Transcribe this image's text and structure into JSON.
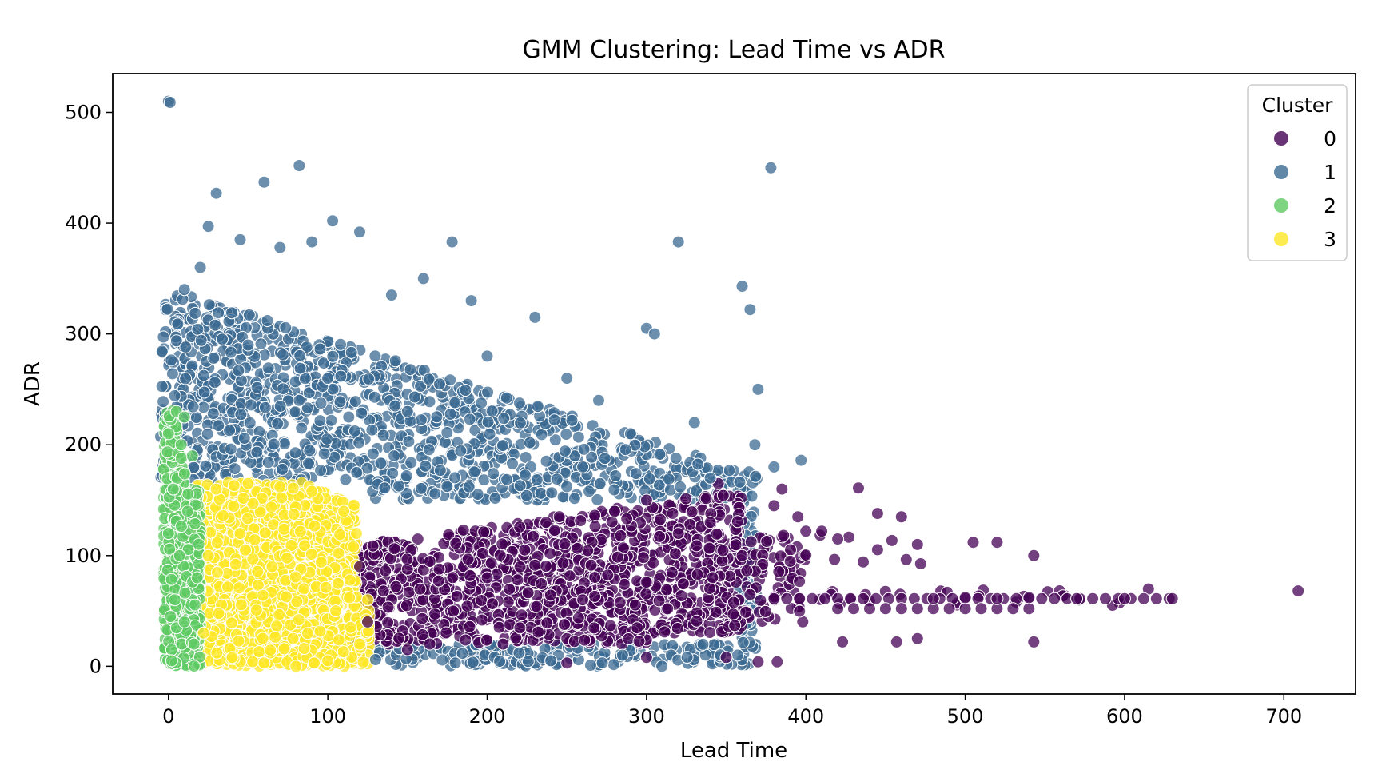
{
  "chart_data": {
    "type": "scatter",
    "title": "GMM Clustering: Lead Time vs ADR",
    "xlabel": "Lead Time",
    "ylabel": "ADR",
    "xlim": [
      -35,
      745
    ],
    "ylim": [
      -25,
      535
    ],
    "xticks": [
      0,
      100,
      200,
      300,
      400,
      500,
      600,
      700
    ],
    "yticks": [
      0,
      100,
      200,
      300,
      400,
      500
    ],
    "grid": false,
    "legend": {
      "title": "Cluster",
      "placement": "top-right",
      "entries": [
        "0",
        "1",
        "2",
        "3"
      ]
    },
    "series": [
      {
        "name": "0",
        "color": "#440154",
        "region": {
          "x": [
            117,
            630
          ],
          "y": [
            3,
            166
          ]
        },
        "points": [
          [
            709,
            68
          ],
          [
            630,
            61
          ],
          [
            600,
            61
          ],
          [
            570,
            61
          ],
          [
            540,
            62
          ],
          [
            520,
            61
          ],
          [
            500,
            62
          ],
          [
            480,
            61
          ],
          [
            543,
            100
          ],
          [
            543,
            22
          ],
          [
            505,
            112
          ],
          [
            520,
            112
          ],
          [
            470,
            110
          ],
          [
            460,
            135
          ],
          [
            445,
            138
          ],
          [
            433,
            161
          ],
          [
            423,
            22
          ],
          [
            457,
            22
          ],
          [
            470,
            25
          ],
          [
            380,
            145
          ],
          [
            385,
            160
          ],
          [
            395,
            135
          ],
          [
            400,
            122
          ],
          [
            410,
            122
          ],
          [
            420,
            115
          ],
          [
            345,
            165
          ],
          [
            350,
            8
          ],
          [
            370,
            4
          ],
          [
            382,
            4
          ],
          [
            300,
            8
          ],
          [
            250,
            3
          ],
          [
            210,
            20
          ],
          [
            150,
            15
          ],
          [
            120,
            90
          ],
          [
            125,
            40
          ],
          [
            200,
            80
          ],
          [
            260,
            60
          ],
          [
            320,
            120
          ],
          [
            340,
            130
          ],
          [
            360,
            100
          ],
          [
            300,
            150
          ],
          [
            280,
            140
          ]
        ]
      },
      {
        "name": "1",
        "color": "#3b6a92",
        "region": {
          "x": [
            -5,
            370
          ],
          "y": [
            0,
            345
          ]
        },
        "points": [
          [
            0,
            510
          ],
          [
            1,
            509
          ],
          [
            82,
            452
          ],
          [
            378,
            450
          ],
          [
            30,
            427
          ],
          [
            60,
            437
          ],
          [
            103,
            402
          ],
          [
            25,
            397
          ],
          [
            120,
            392
          ],
          [
            178,
            383
          ],
          [
            320,
            383
          ],
          [
            360,
            343
          ],
          [
            365,
            322
          ],
          [
            370,
            250
          ],
          [
            380,
            180
          ],
          [
            397,
            186
          ],
          [
            368,
            200
          ],
          [
            300,
            305
          ],
          [
            305,
            300
          ],
          [
            230,
            315
          ],
          [
            190,
            330
          ],
          [
            160,
            350
          ],
          [
            140,
            335
          ],
          [
            90,
            383
          ],
          [
            45,
            385
          ],
          [
            70,
            378
          ],
          [
            20,
            360
          ],
          [
            10,
            340
          ],
          [
            250,
            260
          ],
          [
            270,
            240
          ],
          [
            290,
            210
          ],
          [
            330,
            220
          ],
          [
            340,
            170
          ],
          [
            260,
            180
          ],
          [
            150,
            230
          ],
          [
            100,
            260
          ],
          [
            50,
            290
          ],
          [
            200,
            280
          ],
          [
            220,
            12
          ],
          [
            240,
            5
          ],
          [
            180,
            3
          ],
          [
            130,
            6
          ],
          [
            285,
            10
          ]
        ]
      },
      {
        "name": "2",
        "color": "#5ec962",
        "region": {
          "x": [
            -3,
            20
          ],
          "y": [
            0,
            232
          ]
        },
        "points": [
          [
            5,
            230
          ],
          [
            10,
            225
          ],
          [
            0,
            210
          ],
          [
            8,
            200
          ],
          [
            15,
            190
          ],
          [
            3,
            160
          ],
          [
            12,
            140
          ],
          [
            0,
            120
          ],
          [
            7,
            100
          ],
          [
            18,
            80
          ],
          [
            4,
            60
          ],
          [
            10,
            40
          ],
          [
            16,
            20
          ],
          [
            2,
            5
          ]
        ]
      },
      {
        "name": "3",
        "color": "#fde725",
        "region": {
          "x": [
            18,
            128
          ],
          "y": [
            0,
            166
          ]
        },
        "points": [
          [
            30,
            160
          ],
          [
            50,
            165
          ],
          [
            70,
            162
          ],
          [
            90,
            158
          ],
          [
            110,
            140
          ],
          [
            118,
            120
          ],
          [
            125,
            60
          ],
          [
            120,
            20
          ],
          [
            100,
            5
          ],
          [
            80,
            0
          ],
          [
            60,
            3
          ],
          [
            40,
            8
          ],
          [
            22,
            30
          ],
          [
            25,
            100
          ],
          [
            45,
            120
          ],
          [
            65,
            90
          ],
          [
            85,
            70
          ],
          [
            105,
            50
          ]
        ]
      }
    ]
  }
}
